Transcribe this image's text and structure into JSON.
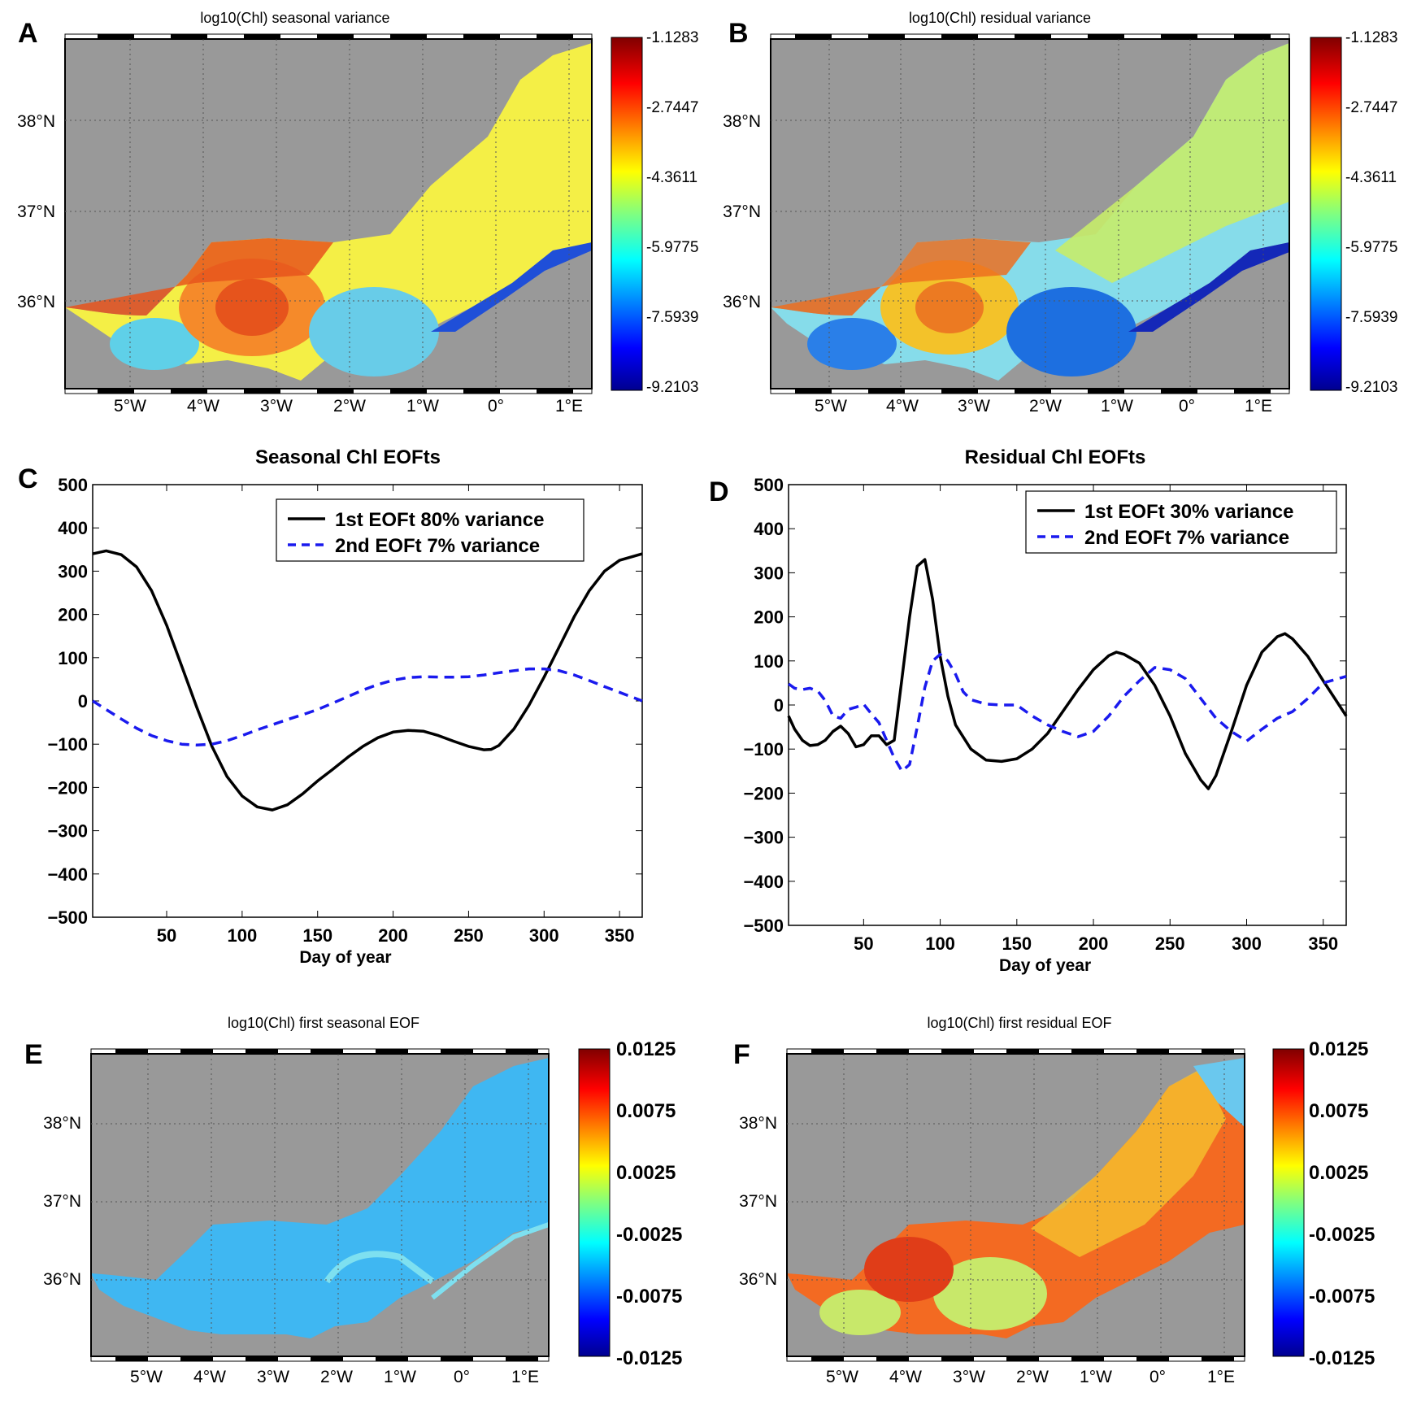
{
  "panels": {
    "A": {
      "letter": "A",
      "title": "log10(Chl) seasonal variance",
      "colorbar_ticks": [
        "-1.1283",
        "-2.7447",
        "-4.3611",
        "-5.9775",
        "-7.5939",
        "-9.2103"
      ],
      "lat_labels": [
        "38°N",
        "37°N",
        "36°N"
      ],
      "lon_labels": [
        "5°W",
        "4°W",
        "3°W",
        "2°W",
        "1°W",
        "0°",
        "1°E"
      ]
    },
    "B": {
      "letter": "B",
      "title": "log10(Chl) residual variance",
      "colorbar_ticks": [
        "-1.1283",
        "-2.7447",
        "-4.3611",
        "-5.9775",
        "-7.5939",
        "-9.2103"
      ],
      "lat_labels": [
        "38°N",
        "37°N",
        "36°N"
      ],
      "lon_labels": [
        "5°W",
        "4°W",
        "3°W",
        "2°W",
        "1°W",
        "0°",
        "1°E"
      ]
    },
    "C": {
      "letter": "C",
      "title": "Seasonal Chl EOFts"
    },
    "D": {
      "letter": "D",
      "title": "Residual Chl EOFts"
    },
    "E": {
      "letter": "E",
      "title": "log10(Chl) first seasonal EOF",
      "colorbar_ticks": [
        "0.0125",
        "0.0075",
        "0.0025",
        "-0.0025",
        "-0.0075",
        "-0.0125"
      ],
      "lat_labels": [
        "38°N",
        "37°N",
        "36°N"
      ],
      "lon_labels": [
        "5°W",
        "4°W",
        "3°W",
        "2°W",
        "1°W",
        "0°",
        "1°E"
      ]
    },
    "F": {
      "letter": "F",
      "title": "log10(Chl) first residual EOF",
      "colorbar_ticks": [
        "0.0125",
        "0.0075",
        "0.0025",
        "-0.0025",
        "-0.0075",
        "-0.0125"
      ],
      "lat_labels": [
        "38°N",
        "37°N",
        "36°N"
      ],
      "lon_labels": [
        "5°W",
        "4°W",
        "3°W",
        "2°W",
        "1°W",
        "0°",
        "1°E"
      ]
    }
  },
  "colors": {
    "ocean_gray": "#999999",
    "land_gray": "#999999",
    "series1": "#000000",
    "series2": "#1a1aee"
  },
  "chart_data": [
    {
      "type": "line",
      "panel": "C",
      "title": "Seasonal Chl EOFts",
      "xlabel": "Day of year",
      "ylabel": "",
      "xlim": [
        1,
        365
      ],
      "ylim": [
        -500,
        500
      ],
      "xticks": [
        50,
        100,
        150,
        200,
        250,
        300,
        350
      ],
      "yticks": [
        500,
        400,
        300,
        200,
        100,
        0,
        -100,
        -200,
        -300,
        -400,
        -500
      ],
      "legend_position": "top-right",
      "series": [
        {
          "name": "1st EOFt 80% variance",
          "style": "solid",
          "x": [
            1,
            10,
            20,
            30,
            40,
            50,
            60,
            70,
            80,
            90,
            100,
            110,
            120,
            130,
            140,
            150,
            160,
            170,
            180,
            190,
            200,
            210,
            220,
            230,
            240,
            250,
            260,
            265,
            270,
            280,
            290,
            300,
            310,
            320,
            330,
            340,
            350,
            365
          ],
          "y": [
            340,
            347,
            338,
            310,
            255,
            175,
            80,
            -15,
            -105,
            -175,
            -220,
            -245,
            -252,
            -240,
            -215,
            -185,
            -158,
            -130,
            -105,
            -85,
            -72,
            -68,
            -70,
            -80,
            -93,
            -105,
            -113,
            -112,
            -103,
            -65,
            -10,
            55,
            125,
            195,
            255,
            300,
            325,
            340
          ]
        },
        {
          "name": "2nd EOFt 7% variance",
          "style": "dashed",
          "x": [
            1,
            10,
            20,
            30,
            40,
            50,
            60,
            70,
            80,
            90,
            100,
            110,
            120,
            130,
            140,
            150,
            160,
            170,
            180,
            190,
            200,
            210,
            220,
            230,
            240,
            250,
            260,
            270,
            280,
            290,
            300,
            310,
            320,
            330,
            340,
            350,
            365
          ],
          "y": [
            0,
            -20,
            -42,
            -63,
            -80,
            -92,
            -100,
            -102,
            -100,
            -92,
            -80,
            -67,
            -55,
            -43,
            -32,
            -20,
            -5,
            10,
            25,
            38,
            48,
            54,
            56,
            55,
            55,
            56,
            60,
            65,
            70,
            74,
            74,
            70,
            60,
            47,
            33,
            20,
            0
          ]
        }
      ]
    },
    {
      "type": "line",
      "panel": "D",
      "title": "Residual Chl EOFts",
      "xlabel": "Day of year",
      "ylabel": "",
      "xlim": [
        1,
        365
      ],
      "ylim": [
        -500,
        500
      ],
      "xticks": [
        50,
        100,
        150,
        200,
        250,
        300,
        350
      ],
      "yticks": [
        500,
        400,
        300,
        200,
        100,
        0,
        -100,
        -200,
        -300,
        -400,
        -500
      ],
      "legend_position": "top-right",
      "series": [
        {
          "name": "1st EOFt 30% variance",
          "style": "solid",
          "x": [
            1,
            5,
            10,
            15,
            20,
            25,
            30,
            35,
            40,
            45,
            50,
            55,
            60,
            65,
            70,
            75,
            80,
            85,
            90,
            95,
            100,
            105,
            110,
            120,
            130,
            140,
            150,
            160,
            170,
            180,
            190,
            200,
            210,
            215,
            220,
            230,
            240,
            250,
            260,
            270,
            275,
            280,
            290,
            300,
            310,
            320,
            325,
            330,
            340,
            350,
            365
          ],
          "y": [
            -25,
            -55,
            -80,
            -92,
            -90,
            -80,
            -60,
            -48,
            -65,
            -95,
            -90,
            -70,
            -70,
            -90,
            -80,
            60,
            200,
            315,
            330,
            240,
            110,
            20,
            -45,
            -100,
            -125,
            -128,
            -122,
            -100,
            -65,
            -15,
            35,
            80,
            112,
            120,
            115,
            95,
            45,
            -25,
            -110,
            -170,
            -190,
            -160,
            -60,
            45,
            120,
            155,
            162,
            150,
            110,
            55,
            -25
          ]
        },
        {
          "name": "2nd EOFt 7% variance",
          "style": "dashed",
          "x": [
            1,
            5,
            10,
            15,
            20,
            25,
            30,
            35,
            40,
            45,
            50,
            55,
            60,
            65,
            70,
            75,
            80,
            85,
            90,
            95,
            100,
            105,
            110,
            115,
            120,
            130,
            140,
            150,
            160,
            170,
            180,
            190,
            200,
            210,
            220,
            230,
            240,
            250,
            260,
            270,
            280,
            290,
            300,
            310,
            320,
            330,
            340,
            350,
            365
          ],
          "y": [
            48,
            38,
            35,
            38,
            32,
            10,
            -25,
            -30,
            -10,
            -5,
            2,
            -20,
            -40,
            -80,
            -120,
            -150,
            -135,
            -50,
            40,
            100,
            115,
            100,
            70,
            30,
            12,
            2,
            0,
            0,
            -25,
            -45,
            -60,
            -72,
            -60,
            -25,
            20,
            55,
            85,
            80,
            60,
            15,
            -30,
            -60,
            -82,
            -55,
            -30,
            -15,
            15,
            50,
            65
          ]
        }
      ]
    }
  ]
}
